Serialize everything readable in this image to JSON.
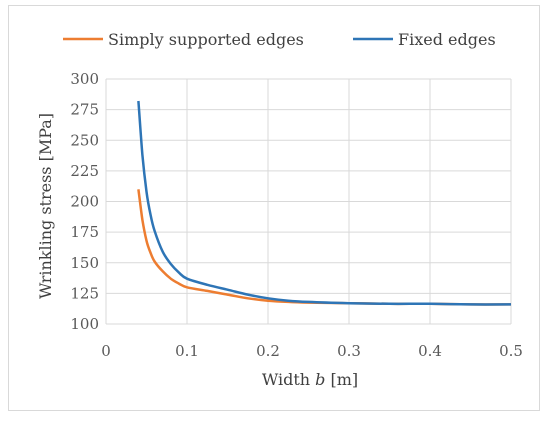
{
  "chart_data": {
    "type": "line",
    "xlabel_prefix": "Width ",
    "xlabel_var": "b",
    "xlabel_suffix": " [m]",
    "ylabel": "Wrinkling stress [MPa]",
    "xlim": [
      0,
      0.5
    ],
    "ylim": [
      100,
      300
    ],
    "xticks": [
      "0",
      "0.1",
      "0.2",
      "0.3",
      "0.4",
      "0.5"
    ],
    "yticks": [
      "100",
      "125",
      "150",
      "175",
      "200",
      "225",
      "250",
      "275",
      "300"
    ],
    "grid": true,
    "legend_position": "top",
    "series": [
      {
        "name": "Simply supported edges",
        "color": "#ED7D31",
        "x": [
          0.04,
          0.045,
          0.05,
          0.055,
          0.06,
          0.07,
          0.08,
          0.09,
          0.1,
          0.125,
          0.15,
          0.175,
          0.2,
          0.225,
          0.25,
          0.3,
          0.35,
          0.4,
          0.45,
          0.5
        ],
        "y": [
          210,
          185,
          168,
          158,
          151,
          143,
          137,
          133,
          130,
          127,
          124,
          121,
          119,
          118,
          117.5,
          117,
          116.5,
          116.5,
          116,
          116
        ]
      },
      {
        "name": "Fixed edges",
        "color": "#2E75B6",
        "x": [
          0.04,
          0.045,
          0.05,
          0.055,
          0.06,
          0.07,
          0.08,
          0.09,
          0.1,
          0.125,
          0.15,
          0.175,
          0.2,
          0.225,
          0.25,
          0.3,
          0.35,
          0.4,
          0.45,
          0.5
        ],
        "y": [
          282,
          238,
          208,
          189,
          176,
          159,
          149,
          142,
          137,
          132,
          128,
          124,
          121,
          119,
          118,
          117,
          116.5,
          116.5,
          116,
          116
        ]
      }
    ]
  }
}
